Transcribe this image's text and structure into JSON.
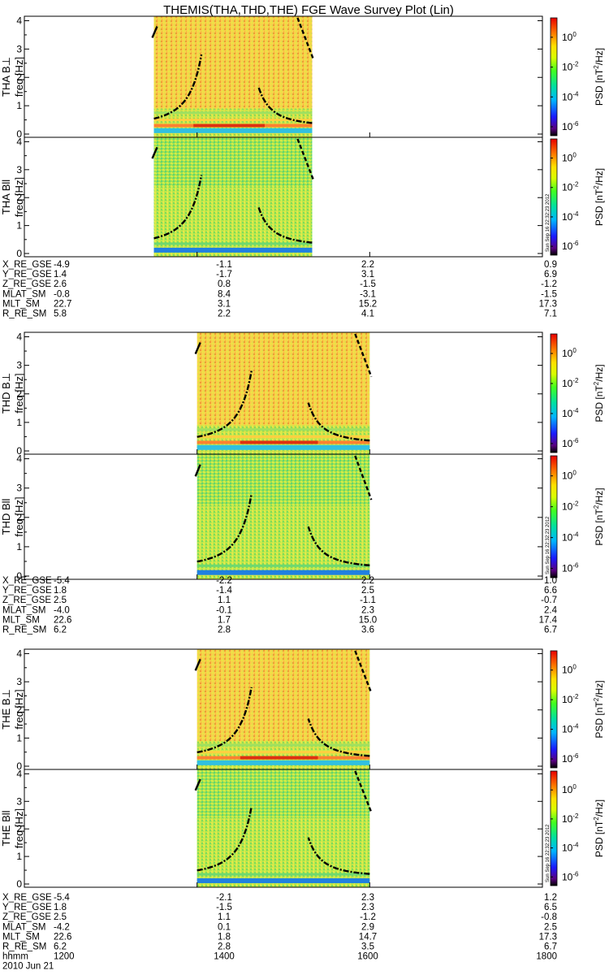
{
  "title": "THEMIS(THA,THD,THE) FGE Wave Survey Plot (Lin)",
  "freq_axis_label": "freq [Hz]",
  "freq_ticks": [
    "0",
    "1",
    "2",
    "3",
    "4"
  ],
  "colorbar": {
    "label_prefix": "PSD [nT",
    "label_sup": "2",
    "label_suffix": "/Hz]",
    "ticks": [
      {
        "exp": "0",
        "value": 1
      },
      {
        "exp": "-2",
        "value": 0.01
      },
      {
        "exp": "-4",
        "value": 0.0001
      },
      {
        "exp": "-6",
        "value": 1e-06
      }
    ],
    "base": "10"
  },
  "stamp": "Sun Sep 16 22:32:23 2012",
  "chart_data": {
    "type": "heatmap",
    "x": {
      "label": "hhmm",
      "date": "2010 Jun 21",
      "ticks": [
        "1200",
        "1400",
        "1600",
        "1800"
      ],
      "range": [
        "1200",
        "1800"
      ]
    },
    "y": {
      "label": "freq [Hz]",
      "range": [
        0,
        4.1
      ]
    },
    "colorscale": "rainbow log PSD, 1e-6 to 1e1 nT^2/Hz",
    "panels": [
      {
        "probe": "THA",
        "component": "B⊥",
        "ylabel": "THA B⊥",
        "data_start": "1330",
        "data_end": "1520",
        "overlay": "dash-dot gyrofrequency curves"
      },
      {
        "probe": "THA",
        "component": "Bll",
        "ylabel": "THA Bll",
        "data_start": "1330",
        "data_end": "1520",
        "overlay": "dash-dot gyrofrequency curves"
      },
      {
        "probe": "THD",
        "component": "B⊥",
        "ylabel": "THD B⊥",
        "data_start": "1400",
        "data_end": "1600",
        "overlay": "dash-dot gyrofrequency curves"
      },
      {
        "probe": "THD",
        "component": "Bll",
        "ylabel": "THD Bll",
        "data_start": "1400",
        "data_end": "1600",
        "overlay": "dash-dot gyrofrequency curves"
      },
      {
        "probe": "THE",
        "component": "B⊥",
        "ylabel": "THE B⊥",
        "data_start": "1400",
        "data_end": "1600",
        "overlay": "dash-dot gyrofrequency curves"
      },
      {
        "probe": "THE",
        "component": "Bll",
        "ylabel": "THE Bll",
        "data_start": "1400",
        "data_end": "1600",
        "overlay": "dash-dot gyrofrequency curves"
      }
    ]
  },
  "ephemeris": [
    {
      "probe": "THA",
      "rows": [
        {
          "label": "X_RE_GSE",
          "values": [
            "-4.9",
            "-1.1",
            "2.2",
            "0.9"
          ]
        },
        {
          "label": "Y_RE_GSE",
          "values": [
            "1.4",
            "-1.7",
            "3.1",
            "6.9"
          ]
        },
        {
          "label": "Z_RE_GSE",
          "values": [
            "2.6",
            "0.8",
            "-1.5",
            "-1.2"
          ]
        },
        {
          "label": "MLAT_SM",
          "values": [
            "-0.8",
            "8.4",
            "-3.1",
            "-1.5"
          ]
        },
        {
          "label": "MLT_SM",
          "values": [
            "22.7",
            "3.1",
            "15.2",
            "17.3"
          ]
        },
        {
          "label": "R_RE_SM",
          "values": [
            "5.8",
            "2.2",
            "4.1",
            "7.1"
          ]
        }
      ]
    },
    {
      "probe": "THD",
      "rows": [
        {
          "label": "X_RE_GSE",
          "values": [
            "-5.4",
            "-2.2",
            "2.2",
            "1.0"
          ]
        },
        {
          "label": "Y_RE_GSE",
          "values": [
            "1.8",
            "-1.4",
            "2.5",
            "6.6"
          ]
        },
        {
          "label": "Z_RE_GSE",
          "values": [
            "2.5",
            "1.1",
            "-1.1",
            "-0.7"
          ]
        },
        {
          "label": "MLAT_SM",
          "values": [
            "-4.0",
            "-0.1",
            "2.3",
            "2.4"
          ]
        },
        {
          "label": "MLT_SM",
          "values": [
            "22.6",
            "1.7",
            "15.0",
            "17.4"
          ]
        },
        {
          "label": "R_RE_SM",
          "values": [
            "6.2",
            "2.8",
            "3.6",
            "6.7"
          ]
        }
      ]
    },
    {
      "probe": "THE",
      "rows": [
        {
          "label": "X_RE_GSE",
          "values": [
            "-5.4",
            "-2.1",
            "2.3",
            "1.2"
          ]
        },
        {
          "label": "Y_RE_GSE",
          "values": [
            "1.8",
            "-1.5",
            "2.3",
            "6.5"
          ]
        },
        {
          "label": "Z_RE_GSE",
          "values": [
            "2.5",
            "1.1",
            "-1.2",
            "-0.8"
          ]
        },
        {
          "label": "MLAT_SM",
          "values": [
            "-4.2",
            "0.1",
            "2.9",
            "2.5"
          ]
        },
        {
          "label": "MLT_SM",
          "values": [
            "22.6",
            "1.8",
            "14.7",
            "17.3"
          ]
        },
        {
          "label": "R_RE_SM",
          "values": [
            "6.2",
            "2.8",
            "3.5",
            "6.7"
          ]
        }
      ]
    }
  ],
  "time_row": {
    "label": "hhmm",
    "values": [
      "1200",
      "1400",
      "1600",
      "1800"
    ],
    "date": "2010 Jun 21"
  }
}
